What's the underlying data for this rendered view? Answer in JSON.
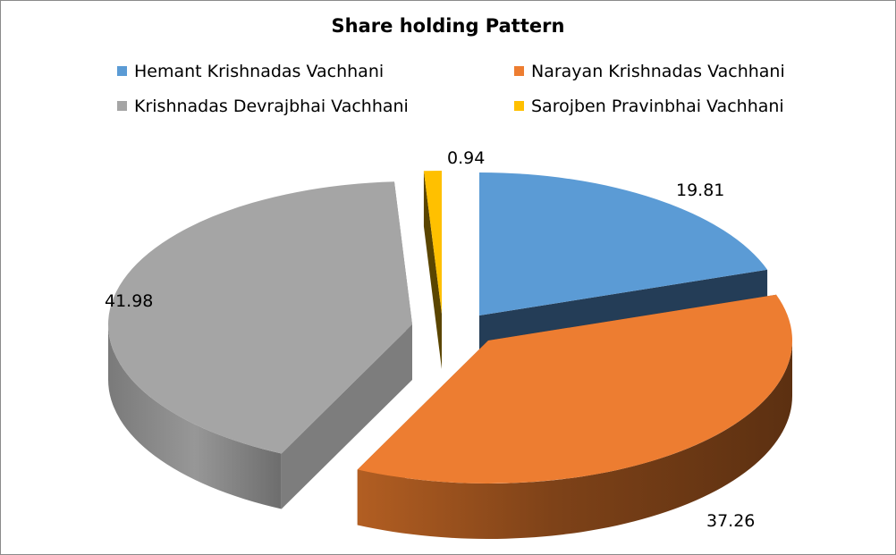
{
  "chart_data": {
    "type": "pie",
    "title": "Share holding Pattern",
    "legend_position": "top",
    "exploded": true,
    "style": "3d",
    "series": [
      {
        "name": "Hemant Krishnadas Vachhani",
        "value": 19.81,
        "label": "19.81",
        "color": "#5b9bd5"
      },
      {
        "name": "Narayan Krishnadas Vachhani",
        "value": 37.26,
        "label": "37.26",
        "color": "#ed7d31"
      },
      {
        "name": "Krishnadas Devrajbhai Vachhani",
        "value": 41.98,
        "label": "41.98",
        "color": "#a5a5a5"
      },
      {
        "name": "Sarojben Pravinbhai Vachhani",
        "value": 0.94,
        "label": "0.94",
        "color": "#ffc000"
      }
    ]
  }
}
